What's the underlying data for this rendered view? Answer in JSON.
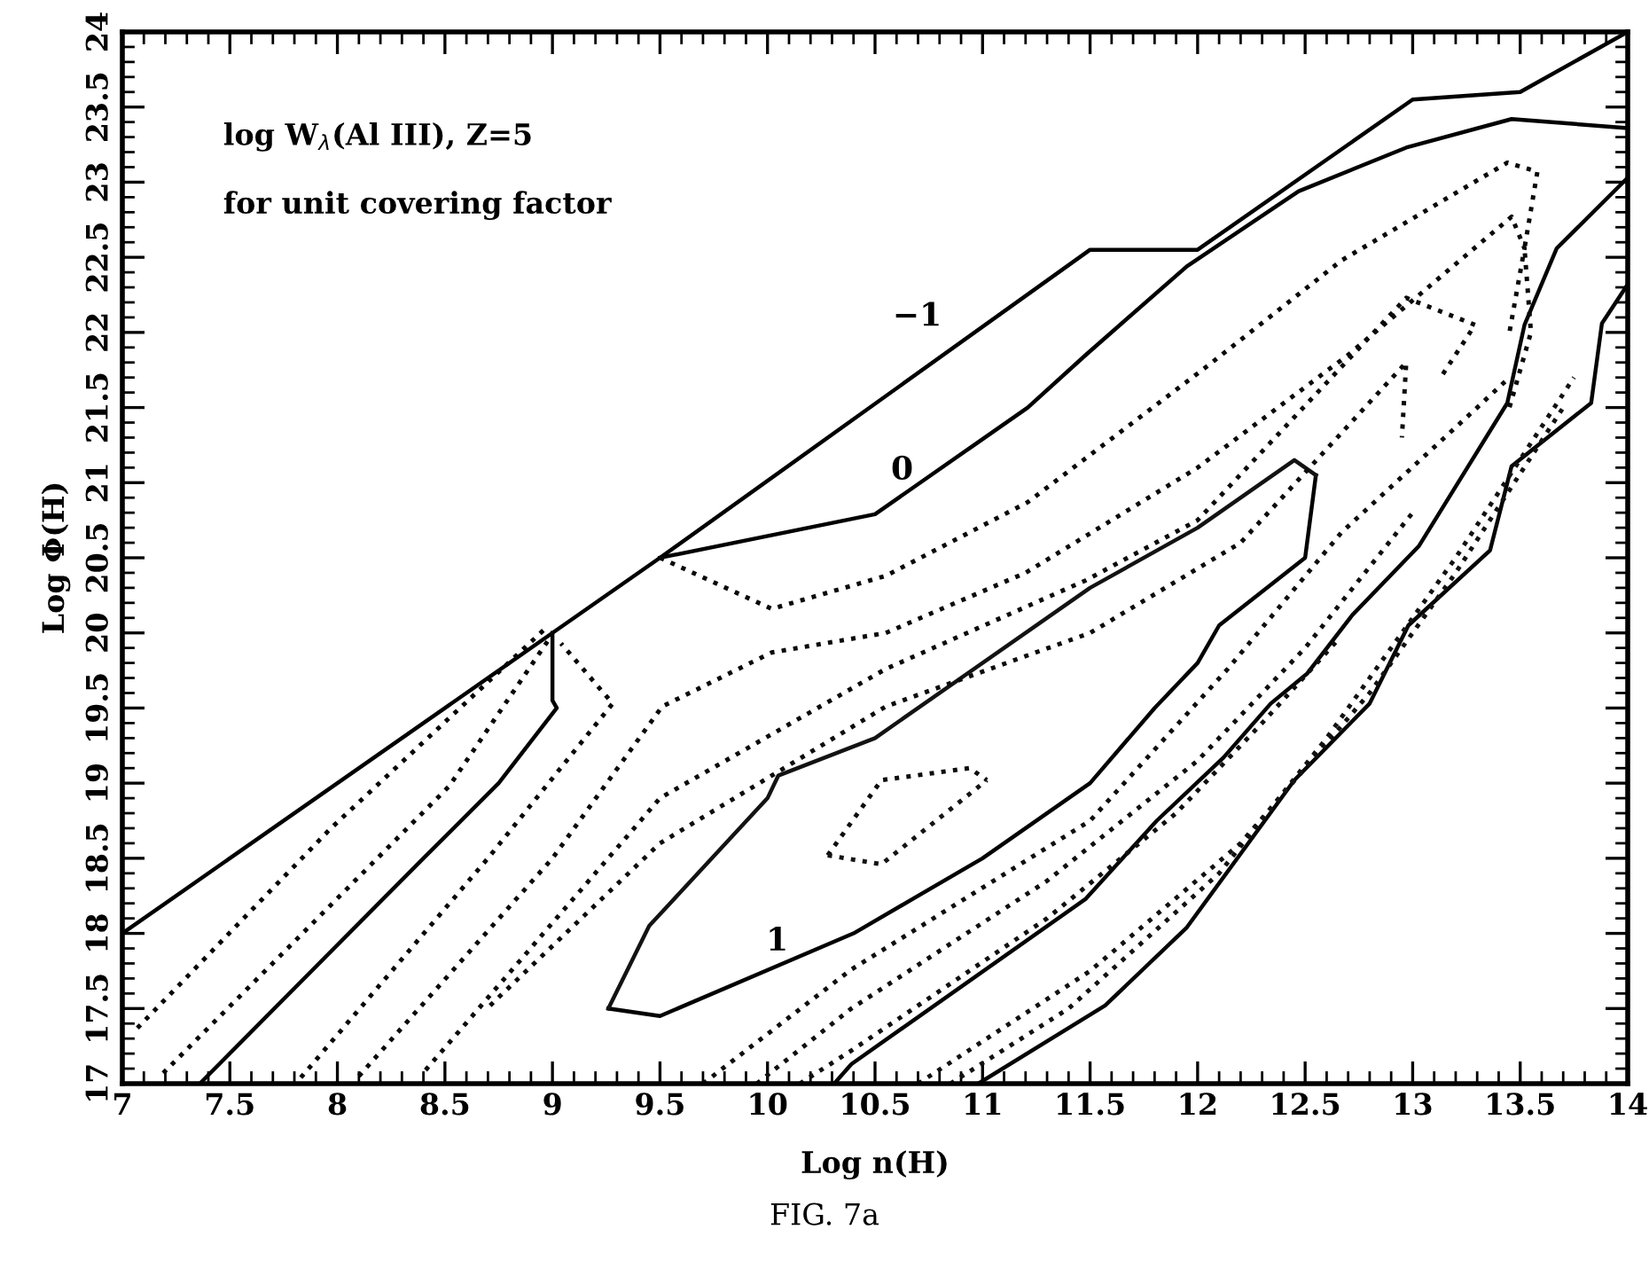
{
  "chart_data": {
    "type": "line",
    "xlabel": "Log n(H)",
    "ylabel": "Log Φ(H)",
    "xlim": [
      7,
      14
    ],
    "ylim": [
      17,
      24
    ],
    "xticks": [
      7,
      7.5,
      8,
      8.5,
      9,
      9.5,
      10,
      10.5,
      11,
      11.5,
      12,
      12.5,
      13,
      13.5,
      14
    ],
    "yticks": [
      17,
      17.5,
      18,
      18.5,
      19,
      19.5,
      20,
      20.5,
      21,
      21.5,
      22,
      22.5,
      23,
      23.5,
      24
    ],
    "grid": false,
    "legend": false,
    "marker": "none",
    "annotations": [
      "log W$_{λ}$(Al III), Z=5",
      "for unit covering factor",
      "−1",
      "0",
      "1",
      "FIG. 7a"
    ],
    "series": [
      {
        "line_style": "solid",
        "color": "#000000",
        "x": [
          7,
          9,
          9.5,
          11.5,
          12,
          13,
          13.5,
          14
        ],
        "values": [
          18,
          20,
          20.5,
          22.55,
          22.55,
          23.55,
          23.6,
          24
        ]
      },
      {
        "line_style": "solid",
        "color": "#010101",
        "x": [
          9.5,
          10.5,
          10.94,
          11.21,
          11.48,
          11.95,
          12.47,
          12.97,
          13.46,
          14
        ],
        "values": [
          20.5,
          20.79,
          21.23,
          21.5,
          21.85,
          22.44,
          22.94,
          23.23,
          23.42,
          23.36
        ]
      },
      {
        "line_style": "solid",
        "color": "#020202",
        "x": [
          9.26,
          9.5,
          10.4,
          11,
          11.5,
          11.8,
          12,
          12.1,
          12.5,
          12.55
        ],
        "values": [
          17.5,
          17.45,
          18,
          18.5,
          19,
          19.5,
          19.8,
          20.05,
          20.5,
          21.05
        ]
      },
      {
        "line_style": "solid",
        "color": "#131313",
        "x": [
          9.26,
          9.45,
          10,
          10.05,
          10.5,
          11.5,
          12,
          12.45,
          12.55
        ],
        "values": [
          17.5,
          18.05,
          18.9,
          19.05,
          19.3,
          20.3,
          20.7,
          21.15,
          21.05
        ]
      },
      {
        "line_style": "solid",
        "color": "#030303",
        "x": [
          7.36,
          8.4,
          8.75,
          9.02,
          9,
          9
        ],
        "values": [
          17,
          18.5,
          19,
          19.5,
          19.55,
          20
        ]
      },
      {
        "line_style": "solid",
        "color": "#040404",
        "x": [
          10.31,
          10.39,
          11.48,
          11.81,
          12.12,
          12.34,
          12.51,
          12.72,
          13.03,
          13.44,
          13.52,
          13.67,
          14
        ],
        "values": [
          17,
          17.13,
          18.23,
          18.75,
          19.17,
          19.53,
          19.73,
          20.12,
          20.58,
          21.53,
          22.05,
          22.56,
          23.03
        ]
      },
      {
        "line_style": "solid",
        "color": "#050505",
        "x": [
          10.98,
          11.57,
          11.95,
          12.45,
          12.8,
          12.98,
          13.36,
          13.46,
          13.83,
          13.88,
          14
        ],
        "values": [
          17,
          17.52,
          18.04,
          19.02,
          19.53,
          20.05,
          20.55,
          21.11,
          21.53,
          22.06,
          22.32
        ]
      },
      {
        "line_style": "dotted",
        "color": "#060606",
        "x": [
          7.07,
          7.97,
          8.96
        ],
        "values": [
          17.37,
          18.7,
          20.02
        ]
      },
      {
        "line_style": "dotted",
        "color": "#070707",
        "x": [
          7.19,
          8.52,
          8.98
        ],
        "values": [
          17.07,
          18.98,
          19.95
        ]
      },
      {
        "line_style": "dotted",
        "color": "#080808",
        "x": [
          7.83,
          8.7,
          9.28,
          9.04
        ],
        "values": [
          17.04,
          18.5,
          19.53,
          19.93
        ]
      },
      {
        "line_style": "dotted",
        "color": "#090909",
        "x": [
          9.5,
          10.02,
          10.55,
          11.21,
          12.04,
          12.67,
          13.44,
          13.58,
          13.52,
          13.55,
          13.45
        ],
        "values": [
          20.5,
          20.16,
          20.38,
          20.87,
          21.77,
          22.48,
          23.13,
          23.07,
          22.56,
          22.0,
          21.5
        ]
      },
      {
        "line_style": "dotted",
        "color": "#0a0a0a",
        "x": [
          8.1,
          9.0,
          9.51,
          10.02,
          10.55,
          11.2,
          12.0,
          12.7,
          13.46,
          13.52,
          13.45
        ],
        "values": [
          17.05,
          18.5,
          19.51,
          19.87,
          20.0,
          20.4,
          21.1,
          21.85,
          22.77,
          22.56,
          22.0
        ]
      },
      {
        "line_style": "dotted",
        "color": "#0b0b0b",
        "x": [
          8.41,
          9.5,
          10.55,
          11.48,
          12.0,
          12.97,
          13.29,
          13.13
        ],
        "values": [
          17.09,
          18.9,
          19.76,
          20.35,
          20.75,
          22.23,
          22.05,
          21.7
        ]
      },
      {
        "line_style": "dotted",
        "color": "#0c0c0c",
        "x": [
          8.71,
          9.5,
          10.55,
          11.5,
          12.2,
          12.97,
          12.95
        ],
        "values": [
          17.52,
          18.6,
          19.51,
          20.0,
          20.6,
          21.8,
          21.3
        ]
      },
      {
        "line_style": "dotted",
        "color": "#0d0d0d",
        "x": [
          10.28,
          10.53,
          10.94,
          11.02
        ],
        "values": [
          18.52,
          19.02,
          19.1,
          19.02
        ]
      },
      {
        "line_style": "dotted",
        "color": "#141414",
        "x": [
          10.28,
          10.53,
          11.02
        ],
        "values": [
          18.52,
          18.46,
          19.02
        ]
      },
      {
        "line_style": "dotted",
        "color": "#0e0e0e",
        "x": [
          9.7,
          10.39,
          11.5,
          12.14,
          12.67,
          13.3,
          13.45
        ],
        "values": [
          17.0,
          17.76,
          18.75,
          19.76,
          20.67,
          21.5,
          21.7
        ]
      },
      {
        "line_style": "dotted",
        "color": "#0f0f0f",
        "x": [
          9.95,
          10.39,
          11.3,
          12.0,
          12.5,
          13.0
        ],
        "values": [
          17.0,
          17.5,
          18.35,
          19.15,
          19.9,
          20.8
        ]
      },
      {
        "line_style": "dotted",
        "color": "#101010",
        "x": [
          10.15,
          10.39,
          11.3,
          11.9,
          12.3,
          12.65
        ],
        "values": [
          17.0,
          17.22,
          18.1,
          18.8,
          19.4,
          19.95
        ]
      },
      {
        "line_style": "dotted",
        "color": "#111111",
        "x": [
          10.7,
          11.5,
          12.2,
          12.8,
          13.2,
          13.7
        ],
        "values": [
          17.0,
          17.75,
          18.6,
          19.6,
          20.4,
          21.5
        ]
      },
      {
        "line_style": "dotted",
        "color": "#121212",
        "x": [
          10.85,
          11.4,
          12.1,
          12.6,
          13.2,
          13.75
        ],
        "values": [
          17.0,
          17.5,
          18.4,
          19.3,
          20.5,
          21.7
        ]
      }
    ]
  }
}
